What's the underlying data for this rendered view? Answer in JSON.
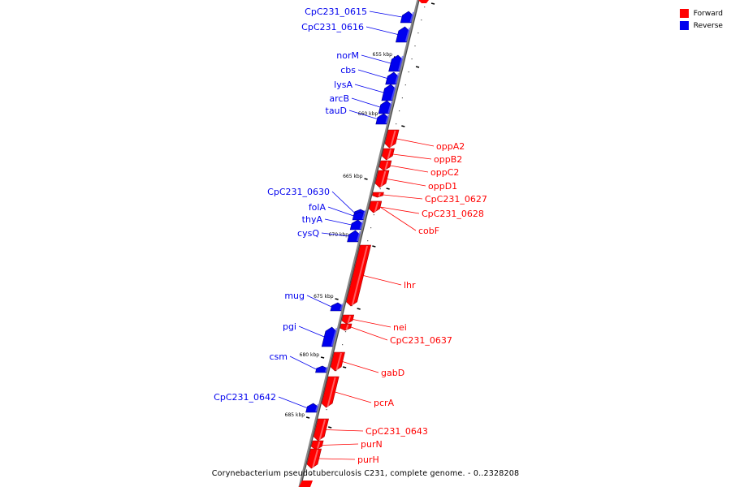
{
  "colors": {
    "forward": "#ff0000",
    "reverse": "#0000ee",
    "axis": "#777777"
  },
  "legend": {
    "forward_label": "Forward",
    "reverse_label": "Reverse"
  },
  "caption": "Corynebacterium pseudotuberculosis C231, complete genome. - 0..2328208",
  "kbp_marks": [
    "655 kbp",
    "660 kbp",
    "665 kbp",
    "670 kbp",
    "675 kbp",
    "680 kbp",
    "685 kbp"
  ],
  "genes": [
    {
      "name": "CpC231_0615",
      "strand": "reverse"
    },
    {
      "name": "CpC231_0616",
      "strand": "reverse"
    },
    {
      "name": "norM",
      "strand": "reverse"
    },
    {
      "name": "cbs",
      "strand": "reverse"
    },
    {
      "name": "lysA",
      "strand": "reverse"
    },
    {
      "name": "arcB",
      "strand": "reverse"
    },
    {
      "name": "tauD",
      "strand": "reverse"
    },
    {
      "name": "oppA2",
      "strand": "forward"
    },
    {
      "name": "oppB2",
      "strand": "forward"
    },
    {
      "name": "oppC2",
      "strand": "forward"
    },
    {
      "name": "oppD1",
      "strand": "forward"
    },
    {
      "name": "CpC231_0627",
      "strand": "forward"
    },
    {
      "name": "CpC231_0628",
      "strand": "forward"
    },
    {
      "name": "cobF",
      "strand": "forward"
    },
    {
      "name": "CpC231_0630",
      "strand": "reverse"
    },
    {
      "name": "folA",
      "strand": "reverse"
    },
    {
      "name": "thyA",
      "strand": "reverse"
    },
    {
      "name": "cysQ",
      "strand": "reverse"
    },
    {
      "name": "lhr",
      "strand": "forward"
    },
    {
      "name": "mug",
      "strand": "reverse"
    },
    {
      "name": "nei",
      "strand": "forward"
    },
    {
      "name": "CpC231_0637",
      "strand": "forward"
    },
    {
      "name": "pgi",
      "strand": "reverse"
    },
    {
      "name": "csm",
      "strand": "reverse"
    },
    {
      "name": "gabD",
      "strand": "forward"
    },
    {
      "name": "pcrA",
      "strand": "forward"
    },
    {
      "name": "CpC231_0642",
      "strand": "reverse"
    },
    {
      "name": "CpC231_0643",
      "strand": "forward"
    },
    {
      "name": "purN",
      "strand": "forward"
    },
    {
      "name": "purH",
      "strand": "forward"
    }
  ]
}
